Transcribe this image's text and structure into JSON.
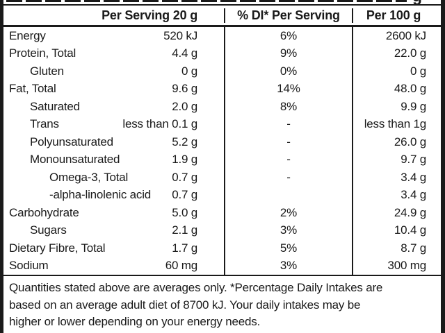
{
  "panel": {
    "cutoff_visible_text": "g",
    "headers": {
      "per_serving": "Per Serving 20 g",
      "di": "% DI* Per Serving",
      "per_100": "Per 100 g"
    },
    "rows": [
      {
        "label": "Energy",
        "indent": 0,
        "per_serving": "520 kJ",
        "di": "6%",
        "per_100": "2600 kJ"
      },
      {
        "label": "Protein, Total",
        "indent": 0,
        "per_serving": "4.4 g",
        "di": "9%",
        "per_100": "22.0 g"
      },
      {
        "label": "Gluten",
        "indent": 1,
        "per_serving": "0 g",
        "di": "0%",
        "per_100": "0 g"
      },
      {
        "label": "Fat, Total",
        "indent": 0,
        "per_serving": "9.6 g",
        "di": "14%",
        "per_100": "48.0 g"
      },
      {
        "label": "Saturated",
        "indent": 1,
        "per_serving": "2.0 g",
        "di": "8%",
        "per_100": "9.9 g"
      },
      {
        "label": "Trans",
        "indent": 1,
        "per_serving": "less than 0.1 g",
        "di": "-",
        "per_100": "less than 1g"
      },
      {
        "label": "Polyunsaturated",
        "indent": 1,
        "per_serving": "5.2 g",
        "di": "-",
        "per_100": "26.0 g"
      },
      {
        "label": "Monounsaturated",
        "indent": 1,
        "per_serving": "1.9 g",
        "di": "-",
        "per_100": "9.7 g"
      },
      {
        "label": "Omega-3, Total",
        "indent": 2,
        "per_serving": "0.7 g",
        "di": "-",
        "per_100": "3.4 g"
      },
      {
        "label": "-alpha-linolenic acid",
        "indent": 2,
        "per_serving": "0.7 g",
        "di": "",
        "per_100": "3.4 g"
      },
      {
        "label": "Carbohydrate",
        "indent": 0,
        "per_serving": "5.0 g",
        "di": "2%",
        "per_100": "24.9 g"
      },
      {
        "label": "Sugars",
        "indent": 1,
        "per_serving": "2.1 g",
        "di": "3%",
        "per_100": "10.4 g"
      },
      {
        "label": "Dietary Fibre, Total",
        "indent": 0,
        "per_serving": "1.7 g",
        "di": "5%",
        "per_100": "8.7 g"
      },
      {
        "label": "Sodium",
        "indent": 0,
        "per_serving": "60 mg",
        "di": "3%",
        "per_100": "300 mg"
      }
    ],
    "footnote_lines": [
      "Quantities stated above are averages only. *Percentage Daily Intakes are",
      "based on an average adult diet of 8700 kJ. Your daily intakes may be",
      "higher or lower depending on your energy needs."
    ],
    "colors": {
      "ink": "#1a1a1a",
      "background": "#ffffff"
    }
  }
}
